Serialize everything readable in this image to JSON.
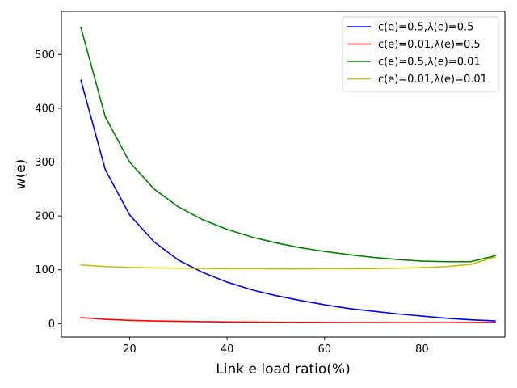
{
  "chart_data": {
    "type": "line",
    "title": "",
    "xlabel": "Link e load ratio(%)",
    "ylabel": "w(e)",
    "xlim": [
      6,
      97
    ],
    "ylim": [
      -25,
      580
    ],
    "xticks": [
      20,
      40,
      60,
      80
    ],
    "xtick_labels": [
      "20",
      "40",
      "60",
      "80"
    ],
    "yticks": [
      0,
      100,
      200,
      300,
      400,
      500
    ],
    "ytick_labels": [
      "0",
      "100",
      "200",
      "300",
      "400",
      "500"
    ],
    "grid": false,
    "legend_position": "upper-right",
    "x": [
      10,
      15,
      20,
      25,
      30,
      35,
      40,
      45,
      50,
      55,
      60,
      65,
      70,
      75,
      80,
      85,
      90,
      95
    ],
    "series": [
      {
        "name": "c(e)=0.5,λ(e)=0.5",
        "color": "#0000ff",
        "values": [
          452,
          286,
          202,
          152,
          118,
          95,
          77,
          63,
          52,
          43,
          35,
          28,
          23,
          18,
          14,
          10,
          7,
          5
        ]
      },
      {
        "name": "c(e)=0.01,λ(e)=0.5",
        "color": "#ff0000",
        "values": [
          11,
          8,
          6,
          5,
          4.2,
          3.6,
          3.1,
          2.8,
          2.5,
          2.3,
          2.1,
          2,
          1.9,
          1.8,
          1.8,
          1.8,
          1.9,
          2.3
        ]
      },
      {
        "name": "c(e)=0.5,λ(e)=0.01",
        "color": "#008000",
        "values": [
          550,
          384,
          300,
          250,
          217,
          193,
          175,
          161,
          150,
          141,
          134,
          128,
          123,
          119,
          116,
          115,
          115,
          126
        ]
      },
      {
        "name": "c(e)=0.01,λ(e)=0.01",
        "color": "#bfbf00",
        "values": [
          109,
          106,
          104.5,
          103.5,
          103,
          102.5,
          102,
          102,
          101.8,
          101.8,
          101.9,
          102,
          102.3,
          103,
          104,
          106,
          110,
          124
        ]
      }
    ]
  }
}
